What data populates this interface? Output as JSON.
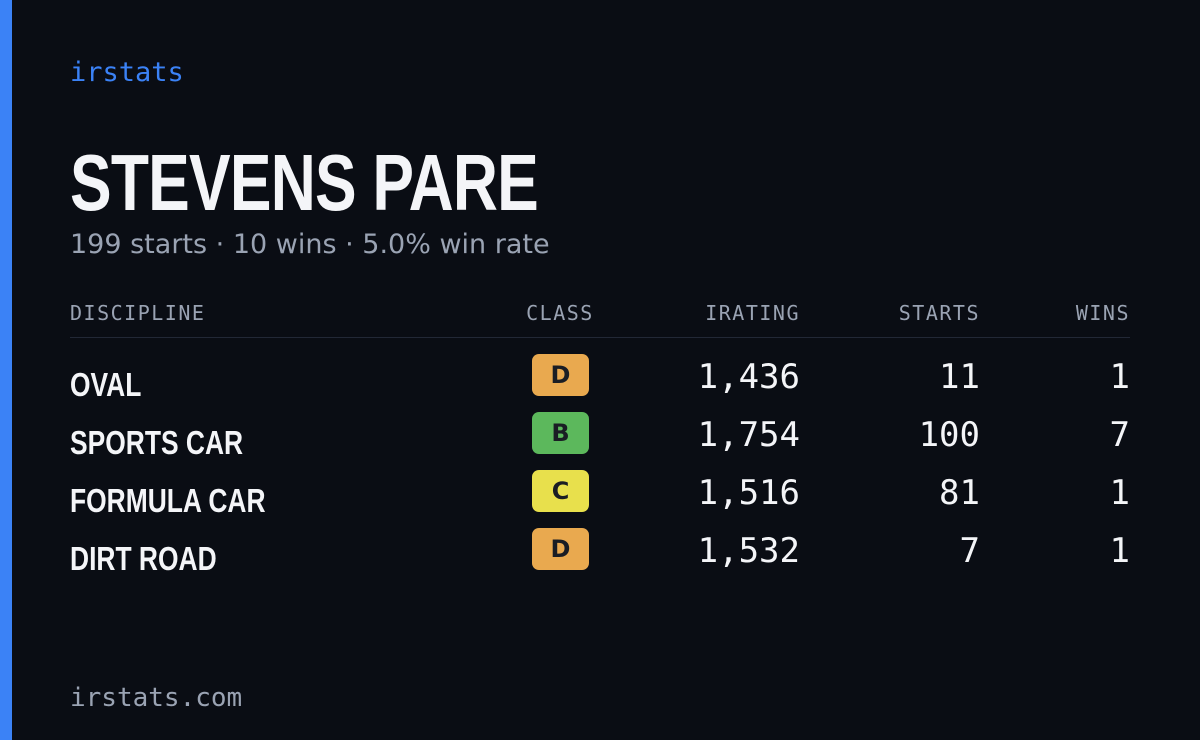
{
  "brand": "irstats",
  "driver": {
    "name": "STEVENS PARE",
    "summary": "199 starts · 10 wins · 5.0% win rate"
  },
  "table": {
    "headers": [
      "DISCIPLINE",
      "CLASS",
      "IRATING",
      "STARTS",
      "WINS"
    ],
    "rows": [
      {
        "discipline": "OVAL",
        "class": "D",
        "class_color": "#e9a94f",
        "irating": "1,436",
        "starts": "11",
        "wins": "1"
      },
      {
        "discipline": "SPORTS CAR",
        "class": "B",
        "class_color": "#5cb85c",
        "irating": "1,754",
        "starts": "100",
        "wins": "7"
      },
      {
        "discipline": "FORMULA CAR",
        "class": "C",
        "class_color": "#e8e04c",
        "irating": "1,516",
        "starts": "81",
        "wins": "1"
      },
      {
        "discipline": "DIRT ROAD",
        "class": "D",
        "class_color": "#e9a94f",
        "irating": "1,532",
        "starts": "7",
        "wins": "1"
      }
    ]
  },
  "footer": "irstats.com"
}
